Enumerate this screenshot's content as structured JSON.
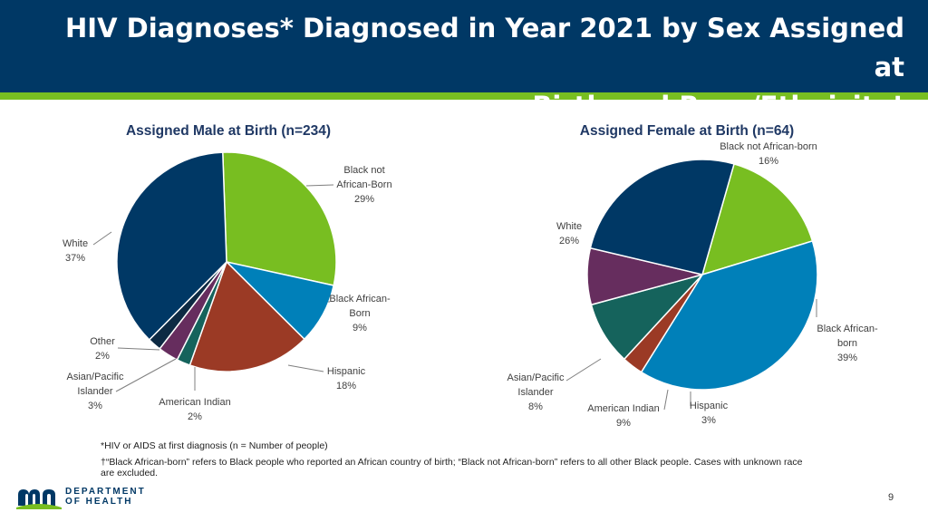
{
  "page": {
    "title_line1": "HIV Diagnoses* Diagnosed in Year 2021 by Sex Assigned at",
    "title_line2": "Birth and Race/Ethnicity†",
    "footnote1": "*HIV or AIDS at first diagnosis  (n = Number of people)",
    "footnote2_line1": "†“Black African-born” refers to Black people who reported an African country of birth; “Black not African-born” refers to all other Black people.  Cases with unknown race",
    "footnote2_line2": "are excluded.",
    "logo_line1": "DEPARTMENT",
    "logo_line2": "OF HEALTH",
    "page_number": "9"
  },
  "colors": {
    "header": "#003865",
    "accent": "#78BE21",
    "black_not_african_born": "#78BE21",
    "black_african_born": "#0080B9",
    "hispanic": "#9B3A25",
    "american_indian": "#15635C",
    "asian_pacific_islander": "#662D5E",
    "other": "#0D2A43",
    "white": "#003865"
  },
  "chart_data": [
    {
      "type": "pie",
      "title": "Assigned Male at Birth (n=234)",
      "slices": [
        {
          "key": "black_not_african_born",
          "label": [
            "Black not",
            "African-Born",
            "29%"
          ],
          "value": 29
        },
        {
          "key": "black_african_born",
          "label": [
            "Black African-",
            "Born",
            "9%"
          ],
          "value": 9
        },
        {
          "key": "hispanic",
          "label": [
            "Hispanic",
            "18%"
          ],
          "value": 18
        },
        {
          "key": "american_indian",
          "label": [
            "American Indian",
            "2%"
          ],
          "value": 2
        },
        {
          "key": "asian_pacific_islander",
          "label": [
            "Asian/Pacific",
            "Islander",
            "3%"
          ],
          "value": 3
        },
        {
          "key": "other",
          "label": [
            "Other",
            "2%"
          ],
          "value": 2
        },
        {
          "key": "white",
          "label": [
            "White",
            "37%"
          ],
          "value": 37
        }
      ]
    },
    {
      "type": "pie",
      "title": "Assigned Female at Birth (n=64)",
      "slices": [
        {
          "key": "black_not_african_born",
          "label": [
            "Black not African-born",
            "16%"
          ],
          "value": 16
        },
        {
          "key": "black_african_born",
          "label": [
            "Black African-",
            "born",
            "39%"
          ],
          "value": 39
        },
        {
          "key": "hispanic",
          "label": [
            "Hispanic",
            "3%"
          ],
          "value": 3
        },
        {
          "key": "american_indian",
          "label": [
            "American Indian",
            "9%"
          ],
          "value": 9
        },
        {
          "key": "asian_pacific_islander",
          "label": [
            "Asian/Pacific",
            "Islander",
            "8%"
          ],
          "value": 8
        },
        {
          "key": "white",
          "label": [
            "White",
            "26%"
          ],
          "value": 26
        }
      ]
    }
  ]
}
